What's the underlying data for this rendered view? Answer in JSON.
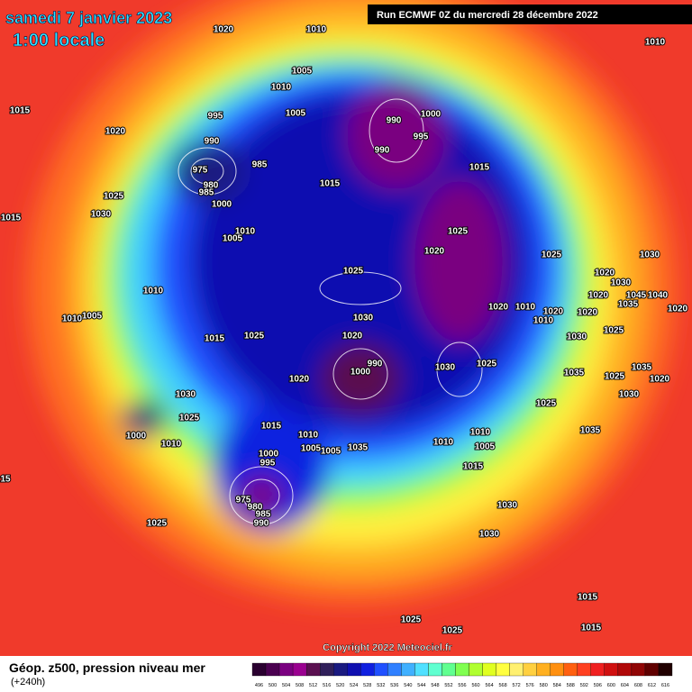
{
  "header": {
    "title": "samedi 7 janvier 2023",
    "time": "1:00 locale",
    "run": "Run ECMWF 0Z du mercredi 28 décembre 2022"
  },
  "copyright": "Copyright 2022 Meteociel.fr",
  "footer": {
    "caption": "Géop. z500, pression niveau mer",
    "lead": "(+240h)"
  },
  "scale": {
    "labels": [
      496,
      500,
      504,
      508,
      512,
      516,
      520,
      524,
      528,
      532,
      536,
      540,
      544,
      548,
      552,
      556,
      560,
      564,
      568,
      572,
      576,
      580,
      584,
      588,
      592,
      596,
      600,
      604,
      608,
      612,
      616
    ],
    "colors": [
      "#2a0030",
      "#4a0050",
      "#7a0080",
      "#9a0090",
      "#5a1050",
      "#30205a",
      "#1a1a80",
      "#1010b0",
      "#1020e0",
      "#2050ff",
      "#3080ff",
      "#40b0ff",
      "#50e0ff",
      "#60ffd0",
      "#60ff90",
      "#80ff50",
      "#b0ff30",
      "#e0ff20",
      "#ffff40",
      "#fff070",
      "#ffd040",
      "#ffb020",
      "#ff9010",
      "#ff6010",
      "#ff4020",
      "#f02020",
      "#d01010",
      "#b00808",
      "#900505",
      "#600000",
      "#200000"
    ]
  },
  "isobar_labels": [
    1020,
    1010,
    1010,
    1005,
    1010,
    1015,
    995,
    1005,
    990,
    1000,
    1020,
    990,
    995,
    990,
    975,
    985,
    1015,
    980,
    985,
    1015,
    1000,
    1025,
    1030,
    1015,
    1010,
    1005,
    1025,
    1020,
    1025,
    1030,
    1025,
    1020,
    1010,
    1030,
    1045,
    1040,
    1020,
    1035,
    1010,
    1005,
    1020,
    1010,
    1020,
    1010,
    1020,
    1030,
    1020,
    1025,
    1030,
    1015,
    1025,
    1020,
    990,
    1000,
    1030,
    1025,
    1035,
    1025,
    1035,
    1020,
    1020,
    1030,
    1030,
    1025,
    1025,
    1015,
    1035,
    1010,
    1000,
    1010,
    1035,
    1005,
    1005,
    1010,
    1010,
    1005,
    1000,
    995,
    1015,
    975,
    980,
    985,
    990,
    1030,
    1025,
    1030,
    1015,
    1025,
    1025,
    1015,
    15
  ]
}
